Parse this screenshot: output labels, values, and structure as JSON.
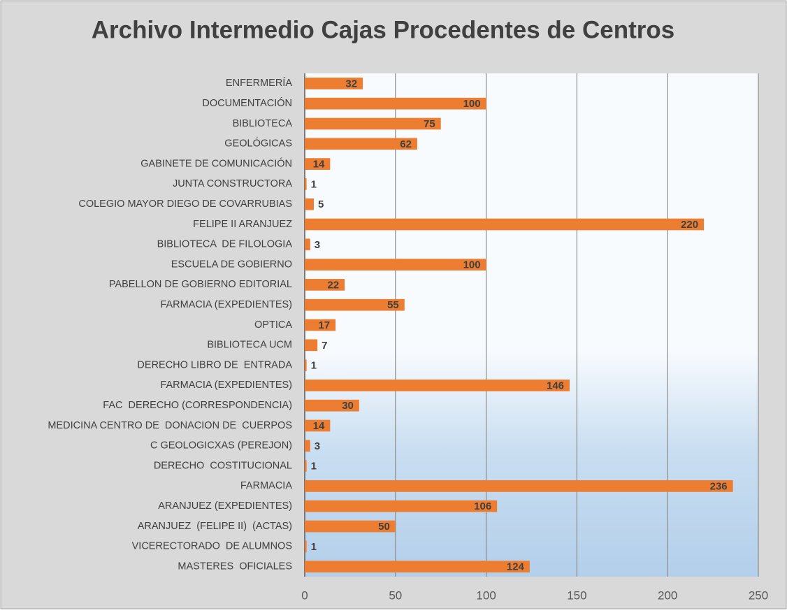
{
  "chart_data": {
    "type": "bar",
    "orientation": "horizontal",
    "title": "Archivo Intermedio Cajas Procedentes de Centros",
    "categories": [
      "ENFERMERÍA",
      "DOCUMENTACIÓN",
      "BIBLIOTECA",
      "GEOLÓGICAS",
      "GABINETE DE COMUNICACIÓN",
      "JUNTA CONSTRUCTORA",
      "COLEGIO MAYOR DIEGO DE COVARRUBIAS",
      "FELIPE II ARANJUEZ",
      "BIBLIOTECA  DE FILOLOGIA",
      "ESCUELA DE GOBIERNO",
      "PABELLON DE GOBIERNO EDITORIAL",
      "FARMACIA (EXPEDIENTES)",
      "OPTICA",
      "BIBLIOTECA UCM",
      "DERECHO LIBRO DE  ENTRADA",
      "FARMACIA (EXPEDIENTES)",
      "FAC  DERECHO (CORRESPONDENCIA)",
      "MEDICINA CENTRO DE  DONACION DE  CUERPOS",
      "C GEOLOGICXAS (PEREJON)",
      "DERECHO  COSTITUCIONAL",
      "FARMACIA",
      "ARANJUEZ (EXPEDIENTES)",
      "ARANJUEZ  (FELIPE II)  (ACTAS)",
      "VICERECTORADO  DE ALUMNOS",
      "MASTERES  OFICIALES"
    ],
    "values": [
      32,
      100,
      75,
      62,
      14,
      1,
      5,
      220,
      3,
      100,
      22,
      55,
      17,
      7,
      1,
      146,
      30,
      14,
      3,
      1,
      236,
      106,
      50,
      1,
      124
    ],
    "color": "#ed7d31",
    "xlim": [
      0,
      250
    ],
    "xticks": [
      0,
      50,
      100,
      150,
      200,
      250
    ],
    "grid": true
  }
}
